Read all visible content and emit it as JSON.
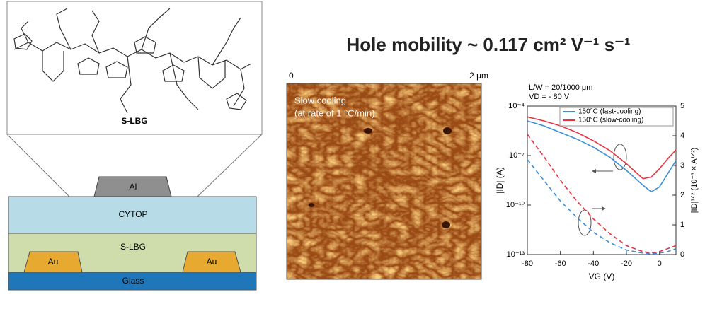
{
  "title": "Hole mobility ~ 0.117 cm² V⁻¹ s⁻¹",
  "molecule": {
    "label": "S-LBG"
  },
  "device": {
    "top_contact": "Al",
    "dielectric": "CYTOP",
    "semiconductor": "S-LBG",
    "contacts": [
      "Au",
      "Au"
    ],
    "substrate": "Glass"
  },
  "afm": {
    "scale_start": "0",
    "scale_end": "2 μm",
    "caption": [
      "Slow cooling",
      "(at rate of 1 °C/min)"
    ]
  },
  "chart_data": {
    "type": "line",
    "annotations": [
      "L/W = 20/1000 μm",
      "VD = - 80 V"
    ],
    "xlabel": "VG (V)",
    "ylabel": "|ID| (A)",
    "y2label": "|ID|¹ᐟ² (10⁻³ × A¹ᐟ²)",
    "x": [
      -80,
      -70,
      -60,
      -50,
      -40,
      -30,
      -20,
      -10,
      -5,
      0,
      5,
      10
    ],
    "xlim": [
      -80,
      10
    ],
    "xticks": [
      -80,
      -60,
      -40,
      -20,
      0
    ],
    "ylim": [
      1e-13,
      0.0001
    ],
    "ylog": true,
    "yticks": [
      {
        "value": 1e-13,
        "label": "10⁻¹³"
      },
      {
        "value": 1e-10,
        "label": "10⁻¹⁰"
      },
      {
        "value": 1e-07,
        "label": "10⁻⁷"
      },
      {
        "value": 0.0001,
        "label": "10⁻⁴"
      }
    ],
    "y2lim": [
      0,
      5
    ],
    "y2ticks": [
      0,
      1,
      2,
      3,
      4,
      5
    ],
    "legend": "upper right",
    "series": [
      {
        "name": "150°C (fast-cooling)",
        "color": "#3d8fd6",
        "values": [
          1.26e-05,
          6.3e-06,
          2.5e-06,
          1e-06,
          3.2e-07,
          7.9e-08,
          1.26e-08,
          1.6e-09,
          6.3e-10,
          1.26e-09,
          7.9e-09,
          5e-08
        ],
        "y2_values": [
          3.2,
          2.5,
          1.8,
          1.25,
          0.75,
          0.4,
          0.15,
          0.05,
          0.03,
          0.05,
          0.1,
          0.2
        ]
      },
      {
        "name": "150°C (slow-cooling)",
        "color": "#e8343f",
        "values": [
          2.2e-05,
          1.26e-05,
          6.3e-06,
          2.5e-06,
          7.9e-07,
          2e-07,
          3.2e-08,
          4e-09,
          5e-09,
          1.6e-08,
          6.3e-08,
          2.2e-07
        ],
        "y2_values": [
          4.05,
          3.3,
          2.5,
          1.8,
          1.2,
          0.7,
          0.3,
          0.1,
          0.05,
          0.1,
          0.2,
          0.3
        ]
      }
    ]
  }
}
